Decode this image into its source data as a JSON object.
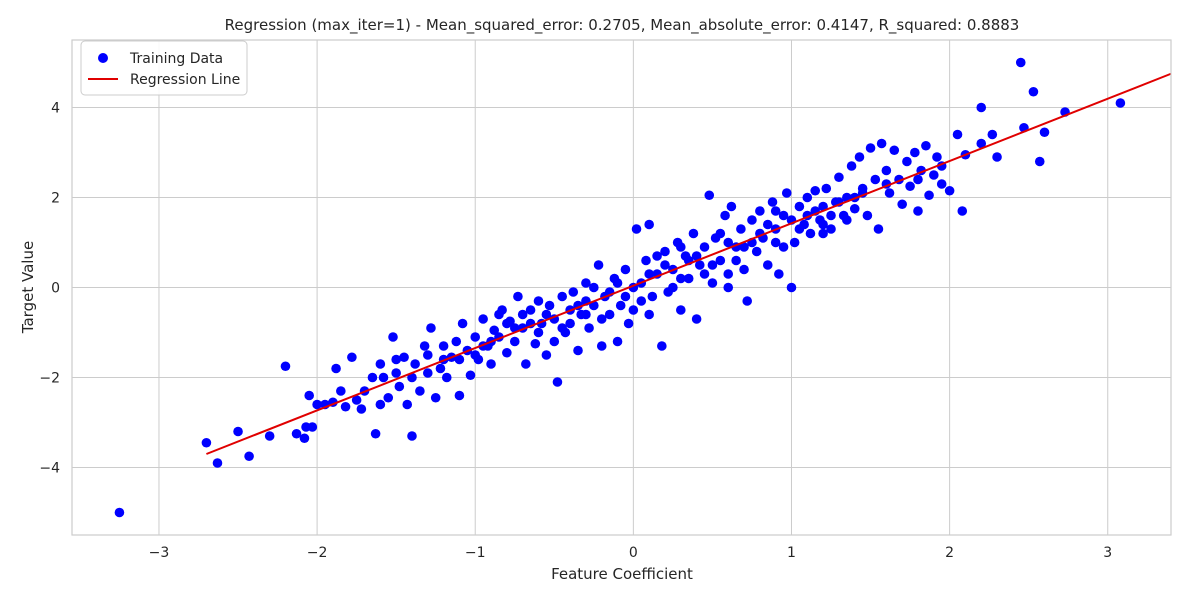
{
  "chart_data": {
    "type": "scatter",
    "title": "Regression (max_iter=1) - Mean_squared_error: 0.2705, Mean_absolute_error: 0.4147, R_squared: 0.8883",
    "xlabel": "Feature Coefficient",
    "ylabel": "Target Value",
    "xlim": [
      -3.55,
      3.4
    ],
    "ylim": [
      -5.5,
      5.5
    ],
    "xticks": [
      -3,
      -2,
      -1,
      0,
      1,
      2,
      3
    ],
    "yticks": [
      -4,
      -2,
      0,
      2,
      4
    ],
    "xtick_labels": [
      "−3",
      "−2",
      "−1",
      "0",
      "1",
      "2",
      "3"
    ],
    "ytick_labels": [
      "−4",
      "−2",
      "0",
      "2",
      "4"
    ],
    "grid": true,
    "legend": {
      "placement": "top-left",
      "entries": [
        "Training Data",
        "Regression Line"
      ]
    },
    "colors": {
      "points": "#0000ff",
      "line": "#e00000",
      "grid": "#cccccc",
      "spine": "#cccccc"
    },
    "series": [
      {
        "name": "Training Data",
        "kind": "scatter",
        "points": [
          [
            -3.25,
            -5.0
          ],
          [
            -2.7,
            -3.45
          ],
          [
            -2.63,
            -3.9
          ],
          [
            -2.5,
            -3.2
          ],
          [
            -2.43,
            -3.75
          ],
          [
            -2.3,
            -3.3
          ],
          [
            -2.2,
            -1.75
          ],
          [
            -2.13,
            -3.25
          ],
          [
            -2.08,
            -3.35
          ],
          [
            -2.07,
            -3.1
          ],
          [
            -2.05,
            -2.4
          ],
          [
            -2.03,
            -3.1
          ],
          [
            -2.0,
            -2.6
          ],
          [
            -1.95,
            -2.6
          ],
          [
            -1.9,
            -2.55
          ],
          [
            -1.88,
            -1.8
          ],
          [
            -1.85,
            -2.3
          ],
          [
            -1.82,
            -2.65
          ],
          [
            -1.78,
            -1.55
          ],
          [
            -1.75,
            -2.5
          ],
          [
            -1.72,
            -2.7
          ],
          [
            -1.7,
            -2.3
          ],
          [
            -1.65,
            -2.0
          ],
          [
            -1.63,
            -3.25
          ],
          [
            -1.6,
            -2.6
          ],
          [
            -1.58,
            -2.0
          ],
          [
            -1.55,
            -2.45
          ],
          [
            -1.52,
            -1.1
          ],
          [
            -1.5,
            -1.6
          ],
          [
            -1.48,
            -2.2
          ],
          [
            -1.45,
            -1.55
          ],
          [
            -1.43,
            -2.6
          ],
          [
            -1.4,
            -3.3
          ],
          [
            -1.38,
            -1.7
          ],
          [
            -1.35,
            -2.3
          ],
          [
            -1.32,
            -1.3
          ],
          [
            -1.3,
            -1.9
          ],
          [
            -1.28,
            -0.9
          ],
          [
            -1.25,
            -2.45
          ],
          [
            -1.22,
            -1.8
          ],
          [
            -1.2,
            -1.3
          ],
          [
            -1.18,
            -2.0
          ],
          [
            -1.15,
            -1.55
          ],
          [
            -1.12,
            -1.2
          ],
          [
            -1.1,
            -2.4
          ],
          [
            -1.08,
            -0.8
          ],
          [
            -1.05,
            -1.4
          ],
          [
            -1.03,
            -1.95
          ],
          [
            -1.0,
            -1.1
          ],
          [
            -0.98,
            -1.6
          ],
          [
            -0.95,
            -0.7
          ],
          [
            -0.92,
            -1.3
          ],
          [
            -0.9,
            -1.7
          ],
          [
            -0.88,
            -0.95
          ],
          [
            -0.85,
            -1.1
          ],
          [
            -0.83,
            -0.5
          ],
          [
            -0.8,
            -1.45
          ],
          [
            -0.78,
            -0.75
          ],
          [
            -0.75,
            -1.2
          ],
          [
            -0.73,
            -0.2
          ],
          [
            -0.7,
            -0.9
          ],
          [
            -0.68,
            -1.7
          ],
          [
            -0.65,
            -0.5
          ],
          [
            -0.62,
            -1.25
          ],
          [
            -0.6,
            -0.3
          ],
          [
            -0.58,
            -0.8
          ],
          [
            -0.55,
            -1.5
          ],
          [
            -0.53,
            -0.4
          ],
          [
            -0.5,
            -0.7
          ],
          [
            -0.48,
            -2.1
          ],
          [
            -0.45,
            -0.2
          ],
          [
            -0.43,
            -1.0
          ],
          [
            -0.4,
            -0.5
          ],
          [
            -0.38,
            -0.1
          ],
          [
            -0.35,
            -1.4
          ],
          [
            -0.33,
            -0.6
          ],
          [
            -0.3,
            0.1
          ],
          [
            -0.28,
            -0.9
          ],
          [
            -0.25,
            -0.4
          ],
          [
            -0.22,
            0.5
          ],
          [
            -0.2,
            -1.3
          ],
          [
            -0.18,
            -0.2
          ],
          [
            -0.15,
            -0.6
          ],
          [
            -0.12,
            0.2
          ],
          [
            -0.1,
            -1.2
          ],
          [
            -0.08,
            -0.4
          ],
          [
            -0.05,
            0.4
          ],
          [
            -0.03,
            -0.8
          ],
          [
            0.0,
            0.0
          ],
          [
            0.02,
            1.3
          ],
          [
            0.05,
            -0.3
          ],
          [
            0.08,
            0.6
          ],
          [
            0.1,
            1.4
          ],
          [
            0.12,
            -0.2
          ],
          [
            0.15,
            0.3
          ],
          [
            0.18,
            -1.3
          ],
          [
            0.2,
            0.8
          ],
          [
            0.22,
            -0.1
          ],
          [
            0.25,
            0.4
          ],
          [
            0.28,
            1.0
          ],
          [
            0.3,
            -0.5
          ],
          [
            0.33,
            0.7
          ],
          [
            0.35,
            0.2
          ],
          [
            0.38,
            1.2
          ],
          [
            0.4,
            -0.7
          ],
          [
            0.42,
            0.5
          ],
          [
            0.45,
            0.9
          ],
          [
            0.48,
            2.05
          ],
          [
            0.5,
            0.1
          ],
          [
            0.52,
            1.1
          ],
          [
            0.55,
            0.6
          ],
          [
            0.58,
            1.6
          ],
          [
            0.6,
            0.3
          ],
          [
            0.62,
            1.8
          ],
          [
            0.65,
            0.9
          ],
          [
            0.68,
            1.3
          ],
          [
            0.7,
            0.4
          ],
          [
            0.72,
            -0.3
          ],
          [
            0.75,
            1.5
          ],
          [
            0.78,
            0.8
          ],
          [
            0.8,
            1.7
          ],
          [
            0.82,
            1.1
          ],
          [
            0.85,
            0.5
          ],
          [
            0.88,
            1.9
          ],
          [
            0.9,
            1.3
          ],
          [
            0.92,
            0.3
          ],
          [
            0.95,
            1.6
          ],
          [
            0.97,
            2.1
          ],
          [
            1.0,
            0.0
          ],
          [
            1.02,
            1.0
          ],
          [
            1.05,
            1.8
          ],
          [
            1.08,
            1.4
          ],
          [
            1.1,
            2.0
          ],
          [
            1.12,
            1.2
          ],
          [
            1.15,
            2.15
          ],
          [
            1.18,
            1.5
          ],
          [
            1.2,
            1.8
          ],
          [
            1.22,
            2.2
          ],
          [
            1.25,
            1.3
          ],
          [
            1.28,
            1.9
          ],
          [
            1.3,
            2.45
          ],
          [
            1.33,
            1.6
          ],
          [
            1.35,
            2.0
          ],
          [
            1.38,
            2.7
          ],
          [
            1.4,
            1.75
          ],
          [
            1.43,
            2.9
          ],
          [
            1.45,
            2.2
          ],
          [
            1.48,
            1.6
          ],
          [
            1.5,
            3.1
          ],
          [
            1.53,
            2.4
          ],
          [
            1.55,
            1.3
          ],
          [
            1.57,
            3.2
          ],
          [
            1.6,
            2.6
          ],
          [
            1.62,
            2.1
          ],
          [
            1.65,
            3.05
          ],
          [
            1.68,
            2.4
          ],
          [
            1.7,
            1.85
          ],
          [
            1.73,
            2.8
          ],
          [
            1.75,
            2.25
          ],
          [
            1.78,
            3.0
          ],
          [
            1.8,
            1.7
          ],
          [
            1.82,
            2.6
          ],
          [
            1.85,
            3.15
          ],
          [
            1.87,
            2.05
          ],
          [
            1.9,
            2.5
          ],
          [
            1.92,
            2.9
          ],
          [
            1.95,
            2.3
          ],
          [
            2.0,
            2.15
          ],
          [
            2.05,
            3.4
          ],
          [
            2.08,
            1.7
          ],
          [
            2.1,
            2.95
          ],
          [
            2.2,
            4.0
          ],
          [
            2.2,
            3.2
          ],
          [
            2.27,
            3.4
          ],
          [
            2.3,
            2.9
          ],
          [
            2.45,
            5.0
          ],
          [
            2.47,
            3.55
          ],
          [
            2.53,
            4.35
          ],
          [
            2.57,
            2.8
          ],
          [
            2.6,
            3.45
          ],
          [
            2.73,
            3.9
          ],
          [
            3.08,
            4.1
          ],
          [
            -1.5,
            -1.9
          ],
          [
            -1.3,
            -1.5
          ],
          [
            -1.1,
            -1.6
          ],
          [
            -0.9,
            -1.2
          ],
          [
            -0.7,
            -0.6
          ],
          [
            -0.6,
            -1.0
          ],
          [
            -0.4,
            -0.8
          ],
          [
            -0.3,
            -0.3
          ],
          [
            -0.2,
            -0.7
          ],
          [
            -0.1,
            0.1
          ],
          [
            0.0,
            -0.5
          ],
          [
            0.1,
            0.3
          ],
          [
            0.2,
            0.5
          ],
          [
            0.3,
            0.2
          ],
          [
            0.4,
            0.7
          ],
          [
            0.5,
            0.5
          ],
          [
            0.6,
            1.0
          ],
          [
            0.7,
            0.9
          ],
          [
            0.8,
            1.2
          ],
          [
            0.9,
            1.0
          ],
          [
            1.0,
            1.5
          ],
          [
            1.1,
            1.6
          ],
          [
            1.2,
            1.4
          ],
          [
            1.3,
            1.9
          ],
          [
            1.4,
            2.0
          ],
          [
            -0.95,
            -1.3
          ],
          [
            -0.85,
            -0.6
          ],
          [
            -0.75,
            -0.9
          ],
          [
            -0.65,
            -0.8
          ],
          [
            -0.55,
            -0.6
          ],
          [
            -0.45,
            -0.9
          ],
          [
            -0.35,
            -0.4
          ],
          [
            -0.25,
            0.0
          ],
          [
            -0.15,
            -0.1
          ],
          [
            -0.05,
            -0.2
          ],
          [
            0.05,
            0.1
          ],
          [
            0.15,
            0.7
          ],
          [
            0.25,
            0.0
          ],
          [
            0.35,
            0.6
          ],
          [
            0.45,
            0.3
          ],
          [
            0.55,
            1.2
          ],
          [
            0.65,
            0.6
          ],
          [
            0.75,
            1.0
          ],
          [
            0.85,
            1.4
          ],
          [
            0.95,
            0.9
          ],
          [
            1.05,
            1.3
          ],
          [
            1.15,
            1.7
          ],
          [
            1.25,
            1.6
          ],
          [
            1.35,
            1.5
          ],
          [
            1.45,
            2.1
          ],
          [
            -1.6,
            -1.7
          ],
          [
            -1.4,
            -2.0
          ],
          [
            -1.2,
            -1.6
          ],
          [
            -1.0,
            -1.5
          ],
          [
            -0.8,
            -0.8
          ],
          [
            -0.5,
            -1.2
          ],
          [
            -0.3,
            -0.6
          ],
          [
            0.1,
            -0.6
          ],
          [
            0.3,
            0.9
          ],
          [
            0.6,
            0.0
          ],
          [
            0.9,
            1.7
          ],
          [
            1.2,
            1.2
          ],
          [
            1.6,
            2.3
          ],
          [
            1.8,
            2.4
          ],
          [
            1.95,
            2.7
          ]
        ]
      },
      {
        "name": "Regression Line",
        "kind": "line",
        "points": [
          [
            -2.7,
            -3.7
          ],
          [
            3.4,
            4.75
          ]
        ]
      }
    ]
  }
}
